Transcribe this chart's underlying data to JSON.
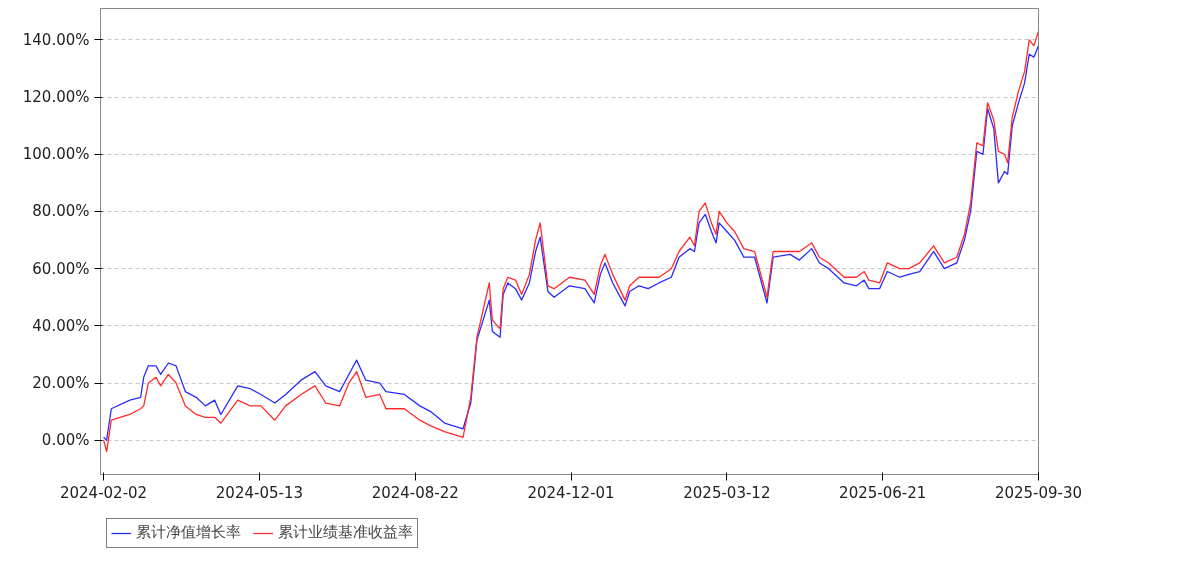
{
  "chart_data": {
    "type": "line",
    "x": [
      "2024-02-02",
      "2024-02-04",
      "2024-02-07",
      "2024-02-19",
      "2024-02-26",
      "2024-02-28",
      "2024-03-02",
      "2024-03-07",
      "2024-03-10",
      "2024-03-15",
      "2024-03-20",
      "2024-03-26",
      "2024-04-02",
      "2024-04-08",
      "2024-04-14",
      "2024-04-18",
      "2024-04-29",
      "2024-05-07",
      "2024-05-14",
      "2024-05-23",
      "2024-05-30",
      "2024-06-09",
      "2024-06-18",
      "2024-06-25",
      "2024-07-04",
      "2024-07-10",
      "2024-07-15",
      "2024-07-21",
      "2024-07-30",
      "2024-08-03",
      "2024-08-15",
      "2024-08-25",
      "2024-09-01",
      "2024-09-10",
      "2024-09-22",
      "2024-09-27",
      "2024-10-01",
      "2024-10-09",
      "2024-10-11",
      "2024-10-16",
      "2024-10-18",
      "2024-10-21",
      "2024-10-26",
      "2024-10-30",
      "2024-11-04",
      "2024-11-08",
      "2024-11-11",
      "2024-11-16",
      "2024-11-20",
      "2024-11-30",
      "2024-12-10",
      "2024-12-16",
      "2024-12-20",
      "2024-12-23",
      "2024-12-28",
      "2025-01-05",
      "2025-01-08",
      "2025-01-14",
      "2025-01-20",
      "2025-01-27",
      "2025-02-04",
      "2025-02-09",
      "2025-02-16",
      "2025-02-19",
      "2025-02-22",
      "2025-02-26",
      "2025-03-02",
      "2025-03-05",
      "2025-03-07",
      "2025-03-12",
      "2025-03-17",
      "2025-03-23",
      "2025-03-30",
      "2025-04-07",
      "2025-04-11",
      "2025-04-22",
      "2025-04-28",
      "2025-05-06",
      "2025-05-11",
      "2025-05-17",
      "2025-05-27",
      "2025-06-04",
      "2025-06-09",
      "2025-06-12",
      "2025-06-19",
      "2025-06-24",
      "2025-07-02",
      "2025-07-08",
      "2025-07-15",
      "2025-07-24",
      "2025-07-31",
      "2025-08-08",
      "2025-08-13",
      "2025-08-17",
      "2025-08-21",
      "2025-08-25",
      "2025-08-28",
      "2025-09-01",
      "2025-09-04",
      "2025-09-08",
      "2025-09-10",
      "2025-09-13",
      "2025-09-17",
      "2025-09-21",
      "2025-09-24",
      "2025-09-27",
      "2025-09-30"
    ],
    "series": [
      {
        "name": "累计净值增长率",
        "color": "#2b2bff",
        "values": [
          1,
          0,
          11,
          14,
          15,
          22,
          26,
          26,
          23,
          27,
          26,
          17,
          15,
          12,
          14,
          9,
          19,
          18,
          16,
          13,
          16,
          21,
          24,
          19,
          17,
          23,
          28,
          21,
          20,
          17,
          16,
          12,
          10,
          6,
          4,
          13,
          35,
          49,
          38,
          36,
          51,
          55,
          53,
          49,
          55,
          66,
          71,
          52,
          50,
          54,
          53,
          48,
          58,
          62,
          55,
          47,
          52,
          54,
          53,
          55,
          57,
          64,
          67,
          66,
          76,
          79,
          73,
          69,
          76,
          73,
          70,
          64,
          64,
          48,
          64,
          65,
          63,
          67,
          62,
          60,
          55,
          54,
          56,
          53,
          53,
          59,
          57,
          58,
          59,
          66,
          60,
          62,
          70,
          80,
          101,
          100,
          116,
          109,
          90,
          94,
          93,
          110,
          118,
          125,
          135,
          134,
          138
        ]
      },
      {
        "name": "累计业绩基准收益率",
        "color": "#ff2b2b",
        "values": [
          0,
          -4,
          7,
          9,
          11,
          12,
          20,
          22,
          19,
          23,
          20,
          12,
          9,
          8,
          8,
          6,
          14,
          12,
          12,
          7,
          12,
          16,
          19,
          13,
          12,
          20,
          24,
          15,
          16,
          11,
          11,
          7,
          5,
          3,
          1,
          15,
          36,
          55,
          42,
          39,
          53,
          57,
          56,
          51,
          58,
          70,
          76,
          54,
          53,
          57,
          56,
          51,
          61,
          65,
          58,
          49,
          54,
          57,
          57,
          57,
          60,
          66,
          71,
          68,
          80,
          83,
          76,
          72,
          80,
          76,
          73,
          67,
          66,
          50,
          66,
          66,
          66,
          69,
          64,
          62,
          57,
          57,
          59,
          56,
          55,
          62,
          60,
          60,
          62,
          68,
          62,
          64,
          72,
          83,
          104,
          103,
          118,
          112,
          101,
          100,
          97,
          113,
          122,
          129,
          140,
          138,
          143
        ]
      }
    ],
    "xlim": [
      "2024-01-31",
      "2025-09-30"
    ],
    "xticks": [
      "2024-02-02",
      "2024-05-13",
      "2024-08-22",
      "2024-12-01",
      "2025-03-12",
      "2025-06-21",
      "2025-09-30"
    ],
    "ylim": [
      -12,
      151
    ],
    "yticks": [
      {
        "value": 0,
        "label": "0.00%"
      },
      {
        "value": 20,
        "label": "20.00%"
      },
      {
        "value": 40,
        "label": "40.00%"
      },
      {
        "value": 60,
        "label": "60.00%"
      },
      {
        "value": 80,
        "label": "80.00%"
      },
      {
        "value": 100,
        "label": "100.00%"
      },
      {
        "value": 120,
        "label": "120.00%"
      },
      {
        "value": 140,
        "label": "140.00%"
      }
    ],
    "grid": "y",
    "legend": "bottom",
    "line_style": "solid"
  }
}
